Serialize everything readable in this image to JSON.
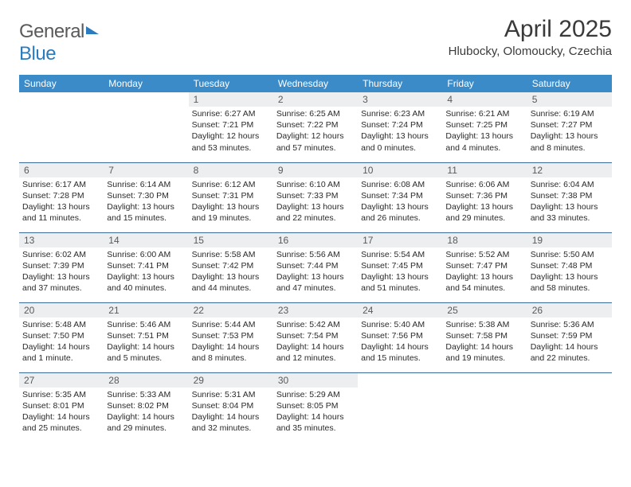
{
  "brand": {
    "part1": "General",
    "part2": "Blue"
  },
  "title": "April 2025",
  "location": "Hlubocky, Olomoucky, Czechia",
  "colors": {
    "header_bg": "#3b8bc9",
    "header_text": "#ffffff",
    "daynum_bg": "#eceeef",
    "row_border": "#3a6a9a",
    "brand_gray": "#5a5a5a",
    "brand_blue": "#2b7bbf"
  },
  "weekdays": [
    "Sunday",
    "Monday",
    "Tuesday",
    "Wednesday",
    "Thursday",
    "Friday",
    "Saturday"
  ],
  "weeks": [
    [
      null,
      null,
      {
        "n": "1",
        "sr": "6:27 AM",
        "ss": "7:21 PM",
        "dl": "12 hours and 53 minutes."
      },
      {
        "n": "2",
        "sr": "6:25 AM",
        "ss": "7:22 PM",
        "dl": "12 hours and 57 minutes."
      },
      {
        "n": "3",
        "sr": "6:23 AM",
        "ss": "7:24 PM",
        "dl": "13 hours and 0 minutes."
      },
      {
        "n": "4",
        "sr": "6:21 AM",
        "ss": "7:25 PM",
        "dl": "13 hours and 4 minutes."
      },
      {
        "n": "5",
        "sr": "6:19 AM",
        "ss": "7:27 PM",
        "dl": "13 hours and 8 minutes."
      }
    ],
    [
      {
        "n": "6",
        "sr": "6:17 AM",
        "ss": "7:28 PM",
        "dl": "13 hours and 11 minutes."
      },
      {
        "n": "7",
        "sr": "6:14 AM",
        "ss": "7:30 PM",
        "dl": "13 hours and 15 minutes."
      },
      {
        "n": "8",
        "sr": "6:12 AM",
        "ss": "7:31 PM",
        "dl": "13 hours and 19 minutes."
      },
      {
        "n": "9",
        "sr": "6:10 AM",
        "ss": "7:33 PM",
        "dl": "13 hours and 22 minutes."
      },
      {
        "n": "10",
        "sr": "6:08 AM",
        "ss": "7:34 PM",
        "dl": "13 hours and 26 minutes."
      },
      {
        "n": "11",
        "sr": "6:06 AM",
        "ss": "7:36 PM",
        "dl": "13 hours and 29 minutes."
      },
      {
        "n": "12",
        "sr": "6:04 AM",
        "ss": "7:38 PM",
        "dl": "13 hours and 33 minutes."
      }
    ],
    [
      {
        "n": "13",
        "sr": "6:02 AM",
        "ss": "7:39 PM",
        "dl": "13 hours and 37 minutes."
      },
      {
        "n": "14",
        "sr": "6:00 AM",
        "ss": "7:41 PM",
        "dl": "13 hours and 40 minutes."
      },
      {
        "n": "15",
        "sr": "5:58 AM",
        "ss": "7:42 PM",
        "dl": "13 hours and 44 minutes."
      },
      {
        "n": "16",
        "sr": "5:56 AM",
        "ss": "7:44 PM",
        "dl": "13 hours and 47 minutes."
      },
      {
        "n": "17",
        "sr": "5:54 AM",
        "ss": "7:45 PM",
        "dl": "13 hours and 51 minutes."
      },
      {
        "n": "18",
        "sr": "5:52 AM",
        "ss": "7:47 PM",
        "dl": "13 hours and 54 minutes."
      },
      {
        "n": "19",
        "sr": "5:50 AM",
        "ss": "7:48 PM",
        "dl": "13 hours and 58 minutes."
      }
    ],
    [
      {
        "n": "20",
        "sr": "5:48 AM",
        "ss": "7:50 PM",
        "dl": "14 hours and 1 minute."
      },
      {
        "n": "21",
        "sr": "5:46 AM",
        "ss": "7:51 PM",
        "dl": "14 hours and 5 minutes."
      },
      {
        "n": "22",
        "sr": "5:44 AM",
        "ss": "7:53 PM",
        "dl": "14 hours and 8 minutes."
      },
      {
        "n": "23",
        "sr": "5:42 AM",
        "ss": "7:54 PM",
        "dl": "14 hours and 12 minutes."
      },
      {
        "n": "24",
        "sr": "5:40 AM",
        "ss": "7:56 PM",
        "dl": "14 hours and 15 minutes."
      },
      {
        "n": "25",
        "sr": "5:38 AM",
        "ss": "7:58 PM",
        "dl": "14 hours and 19 minutes."
      },
      {
        "n": "26",
        "sr": "5:36 AM",
        "ss": "7:59 PM",
        "dl": "14 hours and 22 minutes."
      }
    ],
    [
      {
        "n": "27",
        "sr": "5:35 AM",
        "ss": "8:01 PM",
        "dl": "14 hours and 25 minutes."
      },
      {
        "n": "28",
        "sr": "5:33 AM",
        "ss": "8:02 PM",
        "dl": "14 hours and 29 minutes."
      },
      {
        "n": "29",
        "sr": "5:31 AM",
        "ss": "8:04 PM",
        "dl": "14 hours and 32 minutes."
      },
      {
        "n": "30",
        "sr": "5:29 AM",
        "ss": "8:05 PM",
        "dl": "14 hours and 35 minutes."
      },
      null,
      null,
      null
    ]
  ],
  "labels": {
    "sunrise": "Sunrise:",
    "sunset": "Sunset:",
    "daylight": "Daylight:"
  }
}
